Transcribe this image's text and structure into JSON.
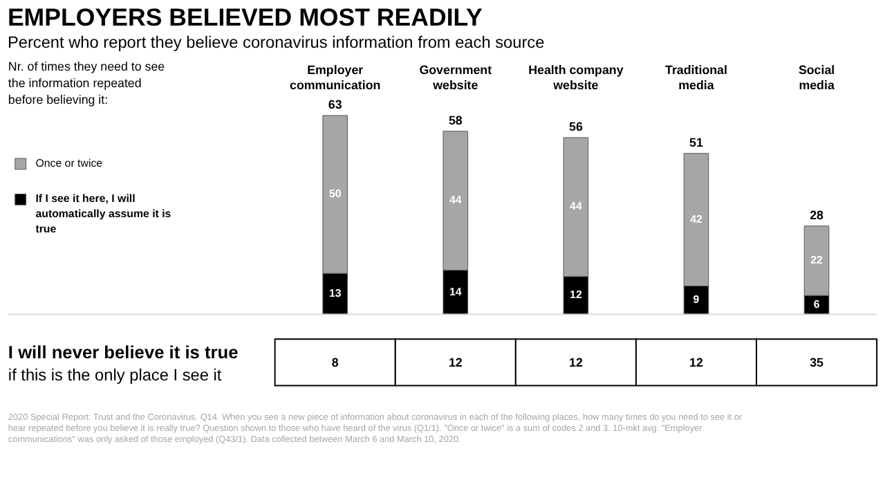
{
  "chart_data": {
    "type": "bar",
    "title": "EMPLOYERS BELIEVED MOST READILY",
    "subtitle": "Percent who report they believe coronavirus information from each source",
    "categories": [
      "Employer communication",
      "Government website",
      "Health company website",
      "Traditional media",
      "Social media"
    ],
    "stacked": true,
    "data_labels": true,
    "legend": "left",
    "legend_title": "Nr. of times they need to see the information repeated before believing it:",
    "series": [
      {
        "name": "If I see it here, I will automatically assume it is true",
        "color": "#000000",
        "values": [
          13,
          14,
          12,
          9,
          6
        ]
      },
      {
        "name": "Once or twice",
        "color": "#a6a6a6",
        "values": [
          50,
          44,
          44,
          42,
          22
        ]
      }
    ],
    "totals": [
      "63",
      "58",
      "56",
      "51",
      "28"
    ],
    "annotations": [
      "I will never believe it is true",
      "if this is the only place I see it",
      "8",
      "12",
      "12",
      "12",
      "35",
      "2020 Special Report: Trust and the Coronavirus. Q14. When you see a new piece of information about coronavirus in each of the following places, how many times do you need to see it or hear repeated before you believe it is really true? Question shown to those who have heard of the virus (Q1/1). \"Once or twice\" is a sum of codes 2 and 3. 10-mkt avg. \"Employer communications\" was only asked of those employed (Q43/1). Data collected between March 6 and March 10, 2020."
    ]
  }
}
